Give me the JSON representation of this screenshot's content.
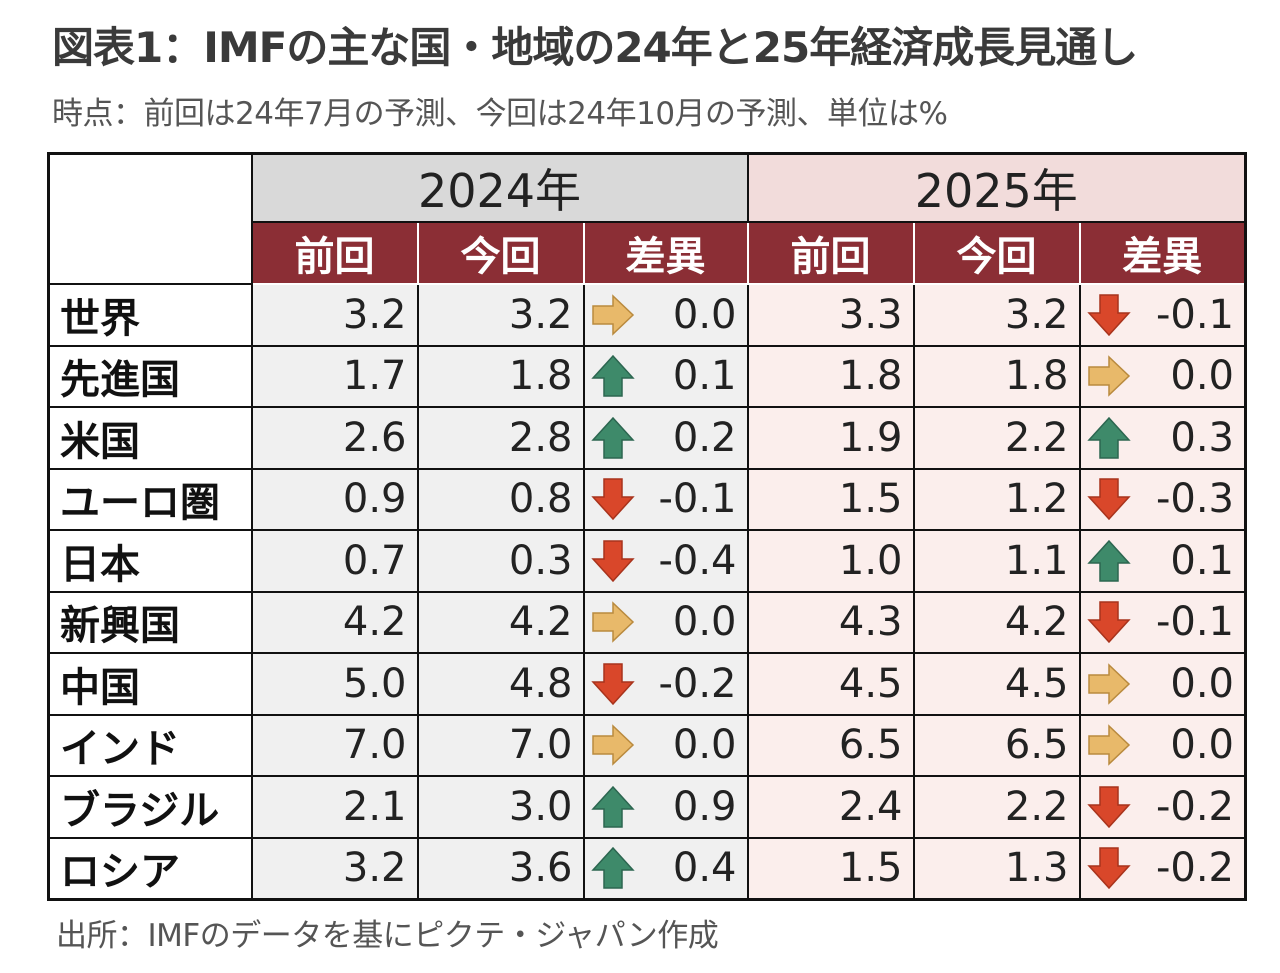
{
  "title": "図表1：IMFの主な国・地域の24年と25年経済成長見通し",
  "subtitle": "時点：前回は24年7月の予測、今回は24年10月の予測、単位は%",
  "source": "出所：IMFのデータを基にピクテ・ジャパン作成",
  "years": [
    "2024年",
    "2025年"
  ],
  "subheaders": [
    "前回",
    "今回",
    "差異",
    "前回",
    "今回",
    "差異"
  ],
  "colors": {
    "header_red": "#8b2e35",
    "year2024_bg": "#d9d9d9",
    "year2025_bg": "#f2dcdb",
    "up_arrow": "#3e8a6a",
    "down_arrow": "#d9472a",
    "flat_arrow": "#e8b96a"
  },
  "rows": [
    {
      "country": "世界",
      "prev24": "3.2",
      "curr24": "3.2",
      "diff24": "0.0",
      "dir24": "flat",
      "prev25": "3.3",
      "curr25": "3.2",
      "diff25": "-0.1",
      "dir25": "down"
    },
    {
      "country": "先進国",
      "prev24": "1.7",
      "curr24": "1.8",
      "diff24": "0.1",
      "dir24": "up",
      "prev25": "1.8",
      "curr25": "1.8",
      "diff25": "0.0",
      "dir25": "flat"
    },
    {
      "country": "米国",
      "prev24": "2.6",
      "curr24": "2.8",
      "diff24": "0.2",
      "dir24": "up",
      "prev25": "1.9",
      "curr25": "2.2",
      "diff25": "0.3",
      "dir25": "up"
    },
    {
      "country": "ユーロ圏",
      "prev24": "0.9",
      "curr24": "0.8",
      "diff24": "-0.1",
      "dir24": "down",
      "prev25": "1.5",
      "curr25": "1.2",
      "diff25": "-0.3",
      "dir25": "down"
    },
    {
      "country": "日本",
      "prev24": "0.7",
      "curr24": "0.3",
      "diff24": "-0.4",
      "dir24": "down",
      "prev25": "1.0",
      "curr25": "1.1",
      "diff25": "0.1",
      "dir25": "up"
    },
    {
      "country": "新興国",
      "prev24": "4.2",
      "curr24": "4.2",
      "diff24": "0.0",
      "dir24": "flat",
      "prev25": "4.3",
      "curr25": "4.2",
      "diff25": "-0.1",
      "dir25": "down"
    },
    {
      "country": "中国",
      "prev24": "5.0",
      "curr24": "4.8",
      "diff24": "-0.2",
      "dir24": "down",
      "prev25": "4.5",
      "curr25": "4.5",
      "diff25": "0.0",
      "dir25": "flat"
    },
    {
      "country": "インド",
      "prev24": "7.0",
      "curr24": "7.0",
      "diff24": "0.0",
      "dir24": "flat",
      "prev25": "6.5",
      "curr25": "6.5",
      "diff25": "0.0",
      "dir25": "flat"
    },
    {
      "country": "ブラジル",
      "prev24": "2.1",
      "curr24": "3.0",
      "diff24": "0.9",
      "dir24": "up",
      "prev25": "2.4",
      "curr25": "2.2",
      "diff25": "-0.2",
      "dir25": "down"
    },
    {
      "country": "ロシア",
      "prev24": "3.2",
      "curr24": "3.6",
      "diff24": "0.4",
      "dir24": "up",
      "prev25": "1.5",
      "curr25": "1.3",
      "diff25": "-0.2",
      "dir25": "down"
    }
  ]
}
